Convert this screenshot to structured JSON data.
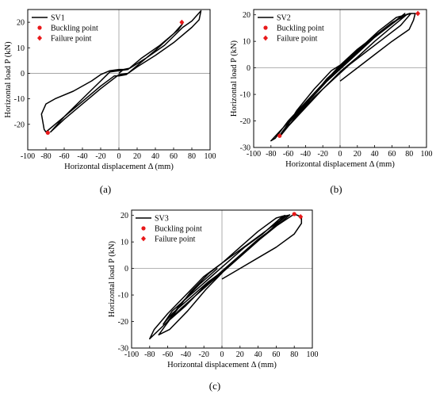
{
  "figure": {
    "captions": [
      "(a)",
      "(b)",
      "(c)"
    ]
  },
  "chart_data": [
    {
      "type": "line",
      "id": "a",
      "caption_letter": "a",
      "xlabel": "Horizontal displacement Δ (mm)",
      "ylabel": "Horizontal load P (kN)",
      "xlim": [
        -100,
        100
      ],
      "ylim": [
        -30,
        25
      ],
      "xticks": [
        -100,
        -80,
        -60,
        -40,
        -20,
        0,
        20,
        40,
        60,
        80,
        100
      ],
      "yticks": [
        -20,
        -10,
        0,
        10,
        20
      ],
      "grid": false,
      "legend_position": "top-left",
      "series": [
        {
          "name": "SV1",
          "kind": "curve",
          "points": [
            [
              0,
              0
            ],
            [
              5,
              1.5
            ],
            [
              12,
              2
            ],
            [
              30,
              6
            ],
            [
              50,
              11
            ],
            [
              70,
              18
            ],
            [
              80,
              20.5
            ],
            [
              90,
              24.5
            ],
            [
              88,
              21
            ],
            [
              80,
              18
            ],
            [
              60,
              12
            ],
            [
              40,
              7
            ],
            [
              20,
              2.5
            ],
            [
              8,
              -0.5
            ],
            [
              0,
              -1
            ],
            [
              -5,
              -1
            ],
            [
              -20,
              -5
            ],
            [
              -40,
              -11
            ],
            [
              -60,
              -17
            ],
            [
              -80,
              -23
            ],
            [
              -82,
              -22
            ],
            [
              -85,
              -16
            ],
            [
              -80,
              -12
            ],
            [
              -70,
              -10
            ],
            [
              -50,
              -7
            ],
            [
              -30,
              -3
            ],
            [
              -20,
              -0.5
            ],
            [
              -10,
              1
            ],
            [
              0,
              1.5
            ],
            [
              10,
              1.5
            ],
            [
              25,
              6
            ],
            [
              45,
              11
            ],
            [
              65,
              17
            ],
            [
              70,
              19.5
            ],
            [
              60,
              15.5
            ],
            [
              40,
              9
            ],
            [
              20,
              3
            ],
            [
              10,
              0
            ],
            [
              0,
              -0.5
            ],
            [
              -20,
              -6
            ],
            [
              -40,
              -12
            ],
            [
              -60,
              -18
            ],
            [
              -75,
              -23
            ],
            [
              -60,
              -17
            ],
            [
              -40,
              -10
            ],
            [
              -20,
              -3
            ],
            [
              -10,
              0.5
            ],
            [
              0,
              1
            ],
            [
              10,
              1.5
            ]
          ]
        }
      ],
      "markers": [
        {
          "name": "Buckling point",
          "shape": "circle",
          "points": [
            [
              -78,
              -23.3
            ]
          ]
        },
        {
          "name": "Failure point",
          "shape": "diamond",
          "points": [
            [
              69,
              20
            ]
          ]
        }
      ]
    },
    {
      "type": "line",
      "id": "b",
      "caption_letter": "b",
      "xlabel": "Horizontal displacement Δ (mm)",
      "ylabel": "Horizontal load P (kN)",
      "xlim": [
        -100,
        100
      ],
      "ylim": [
        -30,
        22
      ],
      "xticks": [
        -100,
        -80,
        -60,
        -40,
        -20,
        0,
        20,
        40,
        60,
        80,
        100
      ],
      "yticks": [
        -30,
        -20,
        -10,
        0,
        10,
        20
      ],
      "grid": false,
      "legend_position": "top-left",
      "series": [
        {
          "name": "SV2",
          "kind": "curve",
          "points": [
            [
              0,
              -5
            ],
            [
              20,
              0
            ],
            [
              40,
              5
            ],
            [
              60,
              10
            ],
            [
              80,
              14.5
            ],
            [
              85,
              18
            ],
            [
              87,
              20.5
            ],
            [
              80,
              20.5
            ],
            [
              60,
              17
            ],
            [
              40,
              12
            ],
            [
              20,
              7
            ],
            [
              0,
              1
            ],
            [
              -20,
              -6
            ],
            [
              -40,
              -13
            ],
            [
              -60,
              -20
            ],
            [
              -75,
              -26.5
            ],
            [
              -80,
              -27.5
            ],
            [
              -70,
              -24
            ],
            [
              -50,
              -17
            ],
            [
              -30,
              -10
            ],
            [
              -10,
              -3
            ],
            [
              10,
              3
            ],
            [
              30,
              9
            ],
            [
              50,
              14
            ],
            [
              70,
              19
            ],
            [
              75,
              20.5
            ],
            [
              65,
              18
            ],
            [
              45,
              13
            ],
            [
              25,
              7
            ],
            [
              5,
              1
            ],
            [
              -15,
              -5
            ],
            [
              -35,
              -12
            ],
            [
              -55,
              -19
            ],
            [
              -70,
              -25.5
            ],
            [
              -60,
              -21
            ],
            [
              -40,
              -14
            ],
            [
              -20,
              -6
            ],
            [
              0,
              0
            ],
            [
              20,
              6
            ],
            [
              40,
              12
            ],
            [
              60,
              17
            ],
            [
              78,
              20.3
            ],
            [
              60,
              15.5
            ],
            [
              40,
              10
            ],
            [
              20,
              4
            ],
            [
              0,
              -1.5
            ],
            [
              -20,
              -8
            ],
            [
              -40,
              -15
            ],
            [
              -60,
              -22
            ],
            [
              -70,
              -26
            ],
            [
              -55,
              -20
            ],
            [
              -35,
              -12
            ],
            [
              -15,
              -4
            ],
            [
              5,
              2
            ],
            [
              25,
              8
            ],
            [
              45,
              14
            ],
            [
              65,
              19
            ],
            [
              82,
              20.5
            ],
            [
              70,
              16
            ],
            [
              50,
              11
            ],
            [
              30,
              6
            ],
            [
              10,
              1
            ],
            [
              -10,
              -5
            ],
            [
              -30,
              -11
            ],
            [
              -50,
              -18
            ],
            [
              -65,
              -24
            ],
            [
              -50,
              -16
            ],
            [
              -30,
              -8
            ],
            [
              -10,
              -1
            ],
            [
              0,
              1
            ]
          ]
        }
      ],
      "markers": [
        {
          "name": "Buckling point",
          "shape": "circle",
          "points": [
            [
              -70,
              -25.6
            ]
          ]
        },
        {
          "name": "Failure point",
          "shape": "diamond",
          "points": [
            [
              90,
              20.5
            ]
          ]
        }
      ]
    },
    {
      "type": "line",
      "id": "c",
      "caption_letter": "c",
      "xlabel": "Horizontal displacement Δ (mm)",
      "ylabel": "Horizontal load P (kN)",
      "xlim": [
        -100,
        100
      ],
      "ylim": [
        -30,
        22
      ],
      "xticks": [
        -100,
        -80,
        -60,
        -40,
        -20,
        0,
        20,
        40,
        60,
        80,
        100
      ],
      "yticks": [
        -30,
        -20,
        -10,
        0,
        10,
        20
      ],
      "grid": false,
      "legend_position": "top-left",
      "series": [
        {
          "name": "SV3",
          "kind": "curve",
          "points": [
            [
              0,
              -4
            ],
            [
              20,
              0
            ],
            [
              40,
              4
            ],
            [
              60,
              8
            ],
            [
              80,
              13
            ],
            [
              88,
              17
            ],
            [
              88,
              19.5
            ],
            [
              80,
              20.5
            ],
            [
              60,
              16
            ],
            [
              40,
              11
            ],
            [
              20,
              5
            ],
            [
              0,
              -1
            ],
            [
              -20,
              -7
            ],
            [
              -40,
              -14
            ],
            [
              -60,
              -20
            ],
            [
              -80,
              -26.5
            ],
            [
              -75,
              -23
            ],
            [
              -60,
              -17
            ],
            [
              -40,
              -10
            ],
            [
              -20,
              -3
            ],
            [
              0,
              2
            ],
            [
              20,
              7
            ],
            [
              40,
              12
            ],
            [
              60,
              17
            ],
            [
              72,
              20
            ],
            [
              65,
              18
            ],
            [
              45,
              12
            ],
            [
              25,
              6
            ],
            [
              5,
              0
            ],
            [
              -15,
              -5
            ],
            [
              -35,
              -11
            ],
            [
              -55,
              -17
            ],
            [
              -65,
              -21
            ],
            [
              -55,
              -16
            ],
            [
              -35,
              -10
            ],
            [
              -15,
              -4
            ],
            [
              5,
              2
            ],
            [
              25,
              8
            ],
            [
              45,
              13
            ],
            [
              65,
              19
            ],
            [
              75,
              20.2
            ],
            [
              62,
              16.5
            ],
            [
              42,
              11
            ],
            [
              22,
              5
            ],
            [
              2,
              -1
            ],
            [
              -18,
              -8
            ],
            [
              -38,
              -16
            ],
            [
              -58,
              -23
            ],
            [
              -70,
              -25
            ],
            [
              -55,
              -18
            ],
            [
              -35,
              -9
            ],
            [
              -15,
              -2
            ],
            [
              0,
              2
            ],
            [
              20,
              8
            ],
            [
              40,
              14
            ],
            [
              60,
              19
            ],
            [
              70,
              20
            ],
            [
              55,
              15
            ],
            [
              35,
              9
            ],
            [
              15,
              3
            ],
            [
              -5,
              -3
            ],
            [
              -25,
              -9
            ],
            [
              -45,
              -15
            ],
            [
              -60,
              -20
            ],
            [
              -45,
              -13
            ],
            [
              -25,
              -6
            ],
            [
              -5,
              0
            ]
          ]
        }
      ],
      "markers": [
        {
          "name": "Buckling point",
          "shape": "circle",
          "points": [
            [
              80,
              20.5
            ]
          ]
        },
        {
          "name": "Failure point",
          "shape": "diamond",
          "points": [
            [
              87,
              19.5
            ]
          ]
        }
      ]
    }
  ]
}
